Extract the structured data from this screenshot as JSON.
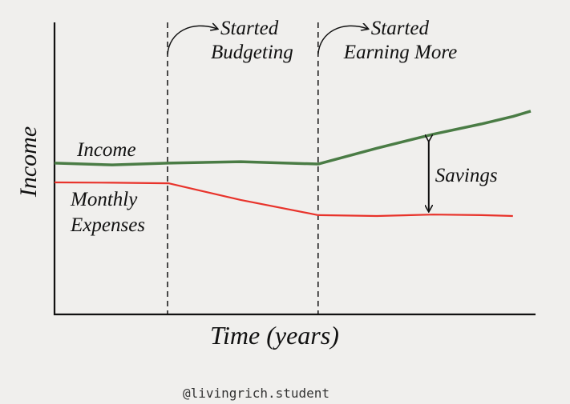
{
  "chart_data": {
    "type": "line",
    "x_label": "Time (years)",
    "y_label": "Income",
    "xlim": [
      0,
      100
    ],
    "ylim": [
      0,
      100
    ],
    "x": [
      0,
      12,
      23.7,
      38.7,
      54.8,
      67,
      78.7,
      88.7,
      95.3,
      99
    ],
    "series": [
      {
        "name": "Income",
        "color": "#4a7c45",
        "values": [
          51.8,
          51.2,
          51.8,
          52.3,
          51.5,
          56.9,
          61.7,
          65.2,
          67.8,
          69.6
        ]
      },
      {
        "name": "Monthly Expenses",
        "color": "#e8332b",
        "values": [
          45.2,
          45.1,
          44.9,
          39.2,
          34,
          33.7,
          34.2,
          34,
          33.7,
          null
        ]
      }
    ],
    "events": [
      {
        "x": 23.5,
        "lines": [
          "Started",
          "Budgeting"
        ]
      },
      {
        "x": 54.8,
        "lines": [
          "Started",
          "Earning More"
        ]
      }
    ],
    "savings": {
      "x": 77.8,
      "text": "Savings"
    },
    "credit": "@livingrich.student"
  }
}
